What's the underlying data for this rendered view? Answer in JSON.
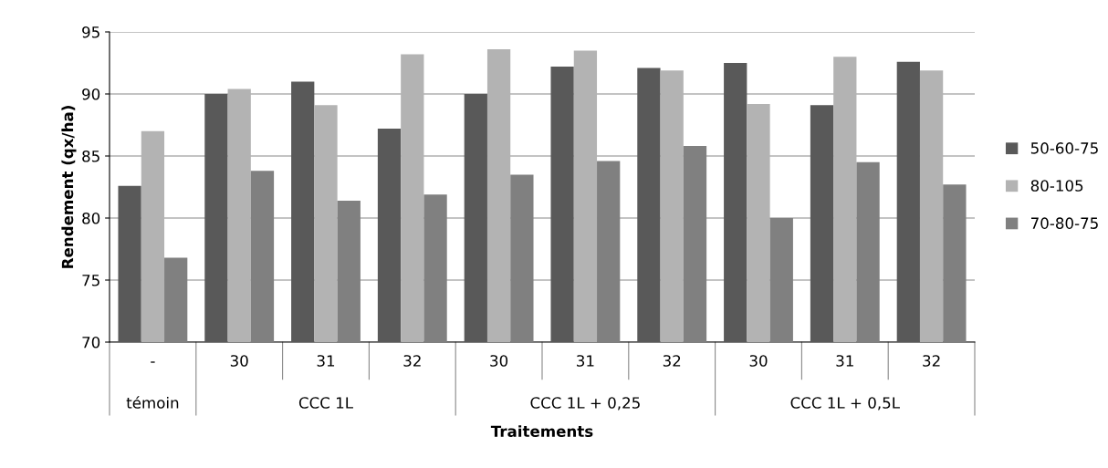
{
  "chart_data": {
    "type": "bar",
    "xlabel": "Traitements",
    "ylabel": "Rendement (qx/ha)",
    "categories": [
      "-",
      "30",
      "31",
      "32",
      "30",
      "31",
      "32",
      "30",
      "31",
      "32"
    ],
    "series": [
      {
        "name": "50-60-75",
        "color": "#595959",
        "values": [
          82.6,
          90.0,
          91.0,
          87.2,
          90.0,
          92.2,
          92.1,
          92.5,
          89.1,
          92.6
        ]
      },
      {
        "name": "80-105",
        "color": "#b3b3b3",
        "values": [
          87.0,
          90.4,
          89.1,
          93.2,
          93.6,
          93.5,
          91.9,
          89.2,
          93.0,
          91.9
        ]
      },
      {
        "name": "70-80-75",
        "color": "#808080",
        "values": [
          76.8,
          83.8,
          81.4,
          81.9,
          83.5,
          84.6,
          85.8,
          80.0,
          84.5,
          82.7
        ]
      }
    ],
    "annotations": [
      "témoin",
      "CCC 1L",
      "CCC 1L + 0,25",
      "CCC 1L + 0,5L"
    ],
    "ylim": [
      70,
      95
    ],
    "yticks": [
      70,
      75,
      80,
      85,
      90,
      95
    ],
    "grid": "y",
    "legend": "right"
  }
}
